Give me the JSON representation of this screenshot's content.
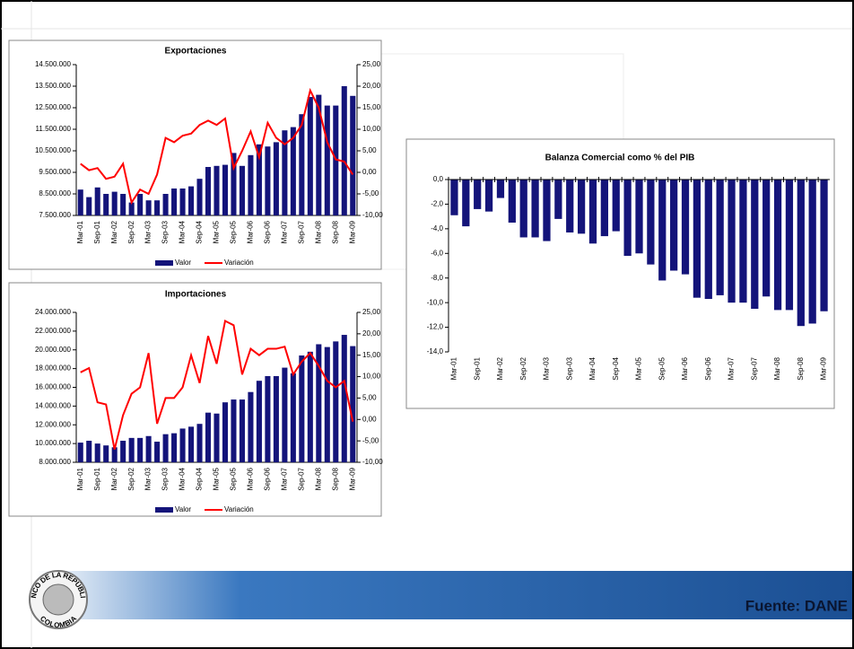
{
  "chart_data": [
    {
      "type": "bar_line",
      "title": "Exportaciones",
      "categories": [
        "Mar-01",
        null,
        "Sep-01",
        null,
        "Mar-02",
        null,
        "Sep-02",
        null,
        "Mar-03",
        null,
        "Sep-03",
        null,
        "Mar-04",
        null,
        "Sep-04",
        null,
        "Mar-05",
        null,
        "Sep-05",
        null,
        "Mar-06",
        null,
        "Sep-06",
        null,
        "Mar-07",
        null,
        "Sep-07",
        null,
        "Mar-08",
        null,
        "Sep-08",
        null,
        "Mar-09"
      ],
      "series": [
        {
          "name": "Valor",
          "color": "#14147a",
          "values": [
            8700000,
            8350000,
            8800000,
            8500000,
            8600000,
            8500000,
            8100000,
            8500000,
            8200000,
            8200000,
            8500000,
            8750000,
            8750000,
            8850000,
            9200000,
            9750000,
            9800000,
            9850000,
            10400000,
            9800000,
            10300000,
            10800000,
            10700000,
            10900000,
            11450000,
            11600000,
            12200000,
            13000000,
            13100000,
            12600000,
            12600000,
            13500000,
            13050000
          ]
        },
        {
          "name": "Variación",
          "color": "#ff0000",
          "axis": "y2",
          "values": [
            2,
            0.5,
            1,
            -1.5,
            -1,
            2,
            -7,
            -4,
            -5,
            -0.5,
            8,
            7,
            8.5,
            9,
            11,
            12,
            11,
            12.5,
            1,
            5,
            9.5,
            3.5,
            11.5,
            8,
            6.5,
            8,
            11,
            19,
            15,
            7,
            3,
            2.5,
            -0.5
          ]
        }
      ],
      "ylim": [
        7500000,
        14500000
      ],
      "yticks": [
        {
          "value": 7500000,
          "label": "7.500.000"
        },
        {
          "value": 8500000,
          "label": "8.500.000"
        },
        {
          "value": 9500000,
          "label": "9.500.000"
        },
        {
          "value": 10500000,
          "label": "10.500.000"
        },
        {
          "value": 11500000,
          "label": "11.500.000"
        },
        {
          "value": 12500000,
          "label": "12.500.000"
        },
        {
          "value": 13500000,
          "label": "13.500.000"
        },
        {
          "value": 14500000,
          "label": "14.500.000"
        }
      ],
      "y2lim": [
        -10,
        25
      ],
      "y2ticks": [
        {
          "value": -10,
          "label": "-10,00"
        },
        {
          "value": -5,
          "label": "-5,00"
        },
        {
          "value": 0,
          "label": "0,00"
        },
        {
          "value": 5,
          "label": "5,00"
        },
        {
          "value": 10,
          "label": "10,00"
        },
        {
          "value": 15,
          "label": "15,00"
        },
        {
          "value": 20,
          "label": "20,00"
        },
        {
          "value": 25,
          "label": "25,00"
        }
      ],
      "legend": "bottom"
    },
    {
      "type": "bar_line",
      "title": "Importaciones",
      "categories": [
        "Mar-01",
        null,
        "Sep-01",
        null,
        "Mar-02",
        null,
        "Sep-02",
        null,
        "Mar-03",
        null,
        "Sep-03",
        null,
        "Mar-04",
        null,
        "Sep-04",
        null,
        "Mar-05",
        null,
        "Sep-05",
        null,
        "Mar-06",
        null,
        "Sep-06",
        null,
        "Mar-07",
        null,
        "Sep-07",
        null,
        "Mar-08",
        null,
        "Sep-08",
        null,
        "Mar-09"
      ],
      "series": [
        {
          "name": "Valor",
          "color": "#14147a",
          "values": [
            10100000,
            10300000,
            10000000,
            9800000,
            9600000,
            10300000,
            10600000,
            10600000,
            10800000,
            10200000,
            11000000,
            11100000,
            11600000,
            11800000,
            12100000,
            13300000,
            13200000,
            14400000,
            14700000,
            14700000,
            15500000,
            16700000,
            17200000,
            17200000,
            18100000,
            17500000,
            19400000,
            19800000,
            20600000,
            20300000,
            20900000,
            21600000,
            20400000
          ]
        },
        {
          "name": "Variación",
          "color": "#ff0000",
          "axis": "y2",
          "values": [
            11,
            12,
            4,
            3.5,
            -7,
            1,
            6,
            7.5,
            15.5,
            -1,
            5,
            5,
            7.5,
            15,
            8.5,
            19.5,
            13,
            23,
            22,
            10.5,
            16.5,
            15,
            16.5,
            16.5,
            17,
            10.5,
            13.5,
            15.5,
            12.5,
            9,
            7.5,
            9,
            -0.5
          ]
        }
      ],
      "ylim": [
        8000000,
        24000000
      ],
      "yticks": [
        {
          "value": 8000000,
          "label": "8.000.000"
        },
        {
          "value": 10000000,
          "label": "10.000.000"
        },
        {
          "value": 12000000,
          "label": "12.000.000"
        },
        {
          "value": 14000000,
          "label": "14.000.000"
        },
        {
          "value": 16000000,
          "label": "16.000.000"
        },
        {
          "value": 18000000,
          "label": "18.000.000"
        },
        {
          "value": 20000000,
          "label": "20.000.000"
        },
        {
          "value": 22000000,
          "label": "22.000.000"
        },
        {
          "value": 24000000,
          "label": "24.000.000"
        }
      ],
      "y2lim": [
        -10,
        25
      ],
      "y2ticks": [
        {
          "value": -10,
          "label": "-10,00"
        },
        {
          "value": -5,
          "label": "-5,00"
        },
        {
          "value": 0,
          "label": "0,00"
        },
        {
          "value": 5,
          "label": "5,00"
        },
        {
          "value": 10,
          "label": "10,00"
        },
        {
          "value": 15,
          "label": "15,00"
        },
        {
          "value": 20,
          "label": "20,00"
        },
        {
          "value": 25,
          "label": "25,00"
        }
      ],
      "legend": "bottom"
    },
    {
      "type": "bar",
      "title": "Balanza Comercial como % del PIB",
      "categories": [
        "Mar-01",
        null,
        "Sep-01",
        null,
        "Mar-02",
        null,
        "Sep-02",
        null,
        "Mar-03",
        null,
        "Sep-03",
        null,
        "Mar-04",
        null,
        "Sep-04",
        null,
        "Mar-05",
        null,
        "Sep-05",
        null,
        "Mar-06",
        null,
        "Sep-06",
        null,
        "Mar-07",
        null,
        "Sep-07",
        null,
        "Mar-08",
        null,
        "Sep-08",
        null,
        "Mar-09"
      ],
      "values": [
        -2.9,
        -3.8,
        -2.4,
        -2.6,
        -1.5,
        -3.5,
        -4.7,
        -4.7,
        -5.0,
        -3.2,
        -4.3,
        -4.4,
        -5.2,
        -4.6,
        -4.2,
        -6.2,
        -6.0,
        -6.9,
        -8.2,
        -7.4,
        -7.7,
        -9.6,
        -9.7,
        -9.4,
        -10.0,
        -10.0,
        -10.5,
        -9.5,
        -10.6,
        -10.6,
        -11.9,
        -11.7,
        -10.7
      ],
      "color": "#14147a",
      "ylim": [
        -14,
        0
      ],
      "yticks": [
        {
          "value": -14,
          "label": "-14,0"
        },
        {
          "value": -12,
          "label": "-12,0"
        },
        {
          "value": -10,
          "label": "-10,0"
        },
        {
          "value": -8,
          "label": "-8,0"
        },
        {
          "value": -6,
          "label": "-6,0"
        },
        {
          "value": -4,
          "label": "-4,0"
        },
        {
          "value": -2,
          "label": "-2,0"
        },
        {
          "value": 0,
          "label": "0,0"
        }
      ]
    }
  ],
  "footer": {
    "source": "Fuente: DANE",
    "logo_top": "BANCO DE LA REPÚBLICA",
    "logo_bottom": "COLOMBIA"
  }
}
